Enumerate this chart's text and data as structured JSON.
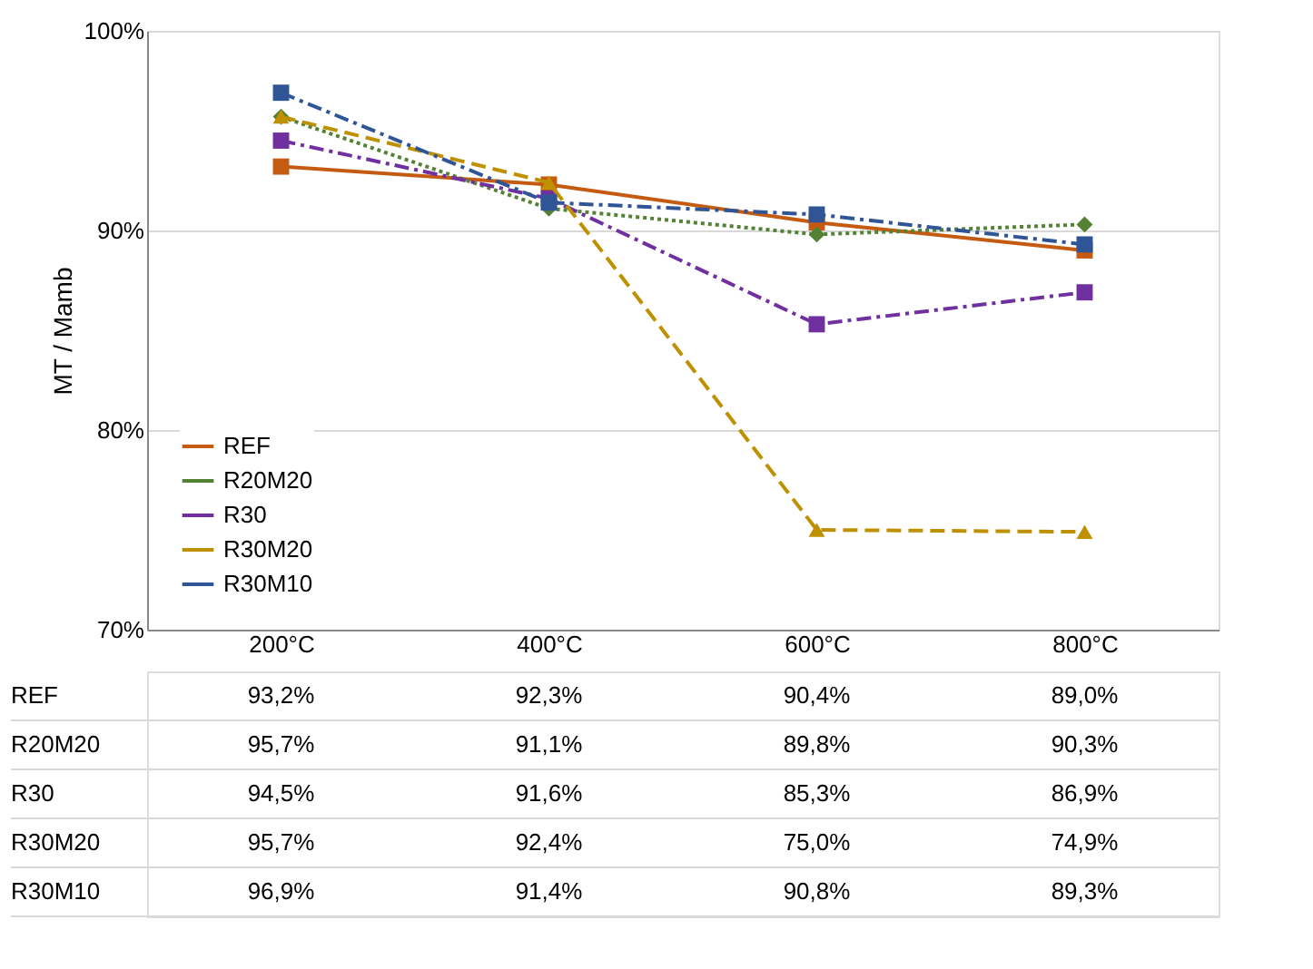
{
  "chart_data": {
    "type": "line",
    "ylabel": "MT / Mamb",
    "categories": [
      "200°C",
      "400°C",
      "600°C",
      "800°C"
    ],
    "ylim": [
      70,
      100
    ],
    "yticks": [
      {
        "value": 70,
        "label": "70%"
      },
      {
        "value": 80,
        "label": "80%"
      },
      {
        "value": 90,
        "label": "90%"
      },
      {
        "value": 100,
        "label": "100%"
      }
    ],
    "grid": "y",
    "legend": "bottom left",
    "series": [
      {
        "name": "REF",
        "color": "#c55a11",
        "marker": "square",
        "line_style": "solid",
        "values": [
          93.2,
          92.3,
          90.4,
          89.0
        ],
        "value_labels": [
          "93,2%",
          "92,3%",
          "90,4%",
          "89,0%"
        ]
      },
      {
        "name": "R20M20",
        "color": "#548235",
        "marker": "diamond",
        "line_style": "dotted",
        "values": [
          95.7,
          91.1,
          89.8,
          90.3
        ],
        "value_labels": [
          "95,7%",
          "91,1%",
          "89,8%",
          "90,3%"
        ]
      },
      {
        "name": "R30",
        "color": "#7030a0",
        "marker": "square",
        "line_style": "dashdot",
        "values": [
          94.5,
          91.6,
          85.3,
          86.9
        ],
        "value_labels": [
          "94,5%",
          "91,6%",
          "85,3%",
          "86,9%"
        ]
      },
      {
        "name": "R30M20",
        "color": "#bf9000",
        "marker": "triangle",
        "line_style": "dashed",
        "values": [
          95.7,
          92.4,
          75.0,
          74.9
        ],
        "value_labels": [
          "95,7%",
          "92,4%",
          "75,0%",
          "74,9%"
        ]
      },
      {
        "name": "R30M10",
        "color": "#2f5597",
        "marker": "square",
        "line_style": "dashdot",
        "values": [
          96.9,
          91.4,
          90.8,
          89.3
        ],
        "value_labels": [
          "96,9%",
          "91,4%",
          "90,8%",
          "89,3%"
        ]
      }
    ]
  }
}
